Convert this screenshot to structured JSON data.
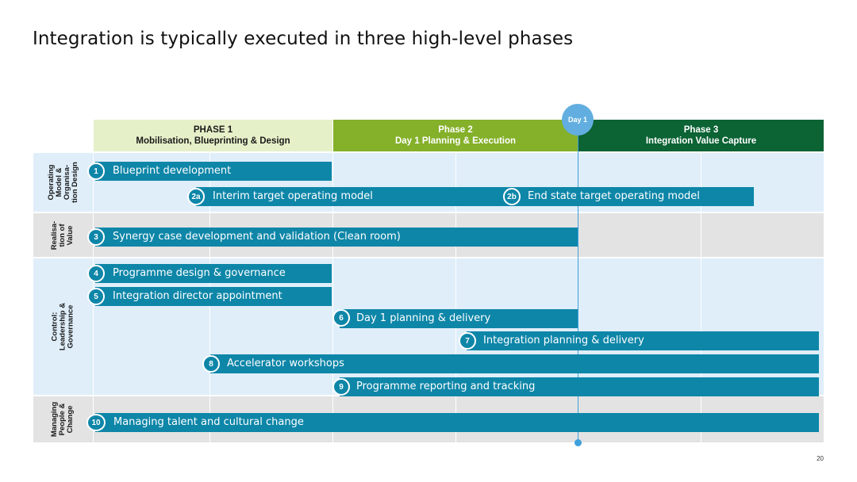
{
  "slide": {
    "title": "Integration is typically executed in three high-level phases",
    "page_number": "20"
  },
  "day1_marker": "Day 1",
  "phases": [
    {
      "title": "PHASE 1",
      "subtitle": "Mobilisation, Blueprinting & Design",
      "bg": "#e6f0c8",
      "fg": "#1a1a1a"
    },
    {
      "title": "Phase 2",
      "subtitle": "Day 1 Planning & Execution",
      "bg": "#84b02a",
      "fg": "#ffffff"
    },
    {
      "title": "Phase 3",
      "subtitle": "Integration Value Capture",
      "bg": "#0c6334",
      "fg": "#ffffff"
    }
  ],
  "lanes": [
    {
      "label": "Operating\nModel &\nOrganisa-\ntion Design",
      "bg": "#dfeef9"
    },
    {
      "label": "Realisa-\ntion of\nValue",
      "bg": "#e3e3e3"
    },
    {
      "label": "Control: Leadership &\nGovernance",
      "bg": "#dfeef9"
    },
    {
      "label": "Managing\nPeople &\nChange",
      "bg": "#e3e3e3"
    }
  ],
  "tasks": [
    {
      "badge": "1",
      "label": "Blueprint development"
    },
    {
      "badge": "2a",
      "label": "Interim target operating model"
    },
    {
      "badge": "2b",
      "label": "End state target operating model"
    },
    {
      "badge": "3",
      "label": "Synergy case development and validation (Clean room)"
    },
    {
      "badge": "4",
      "label": "Programme design & governance"
    },
    {
      "badge": "5",
      "label": "Integration director appointment"
    },
    {
      "badge": "6",
      "label": "Day 1 planning & delivery"
    },
    {
      "badge": "7",
      "label": "Integration planning & delivery"
    },
    {
      "badge": "8",
      "label": "Accelerator workshops"
    },
    {
      "badge": "9",
      "label": "Programme reporting and tracking"
    },
    {
      "badge": "10",
      "label": "Managing talent and cultural change"
    }
  ],
  "colors": {
    "bar": "#0e86a8",
    "day1": "#3ea0dc"
  }
}
